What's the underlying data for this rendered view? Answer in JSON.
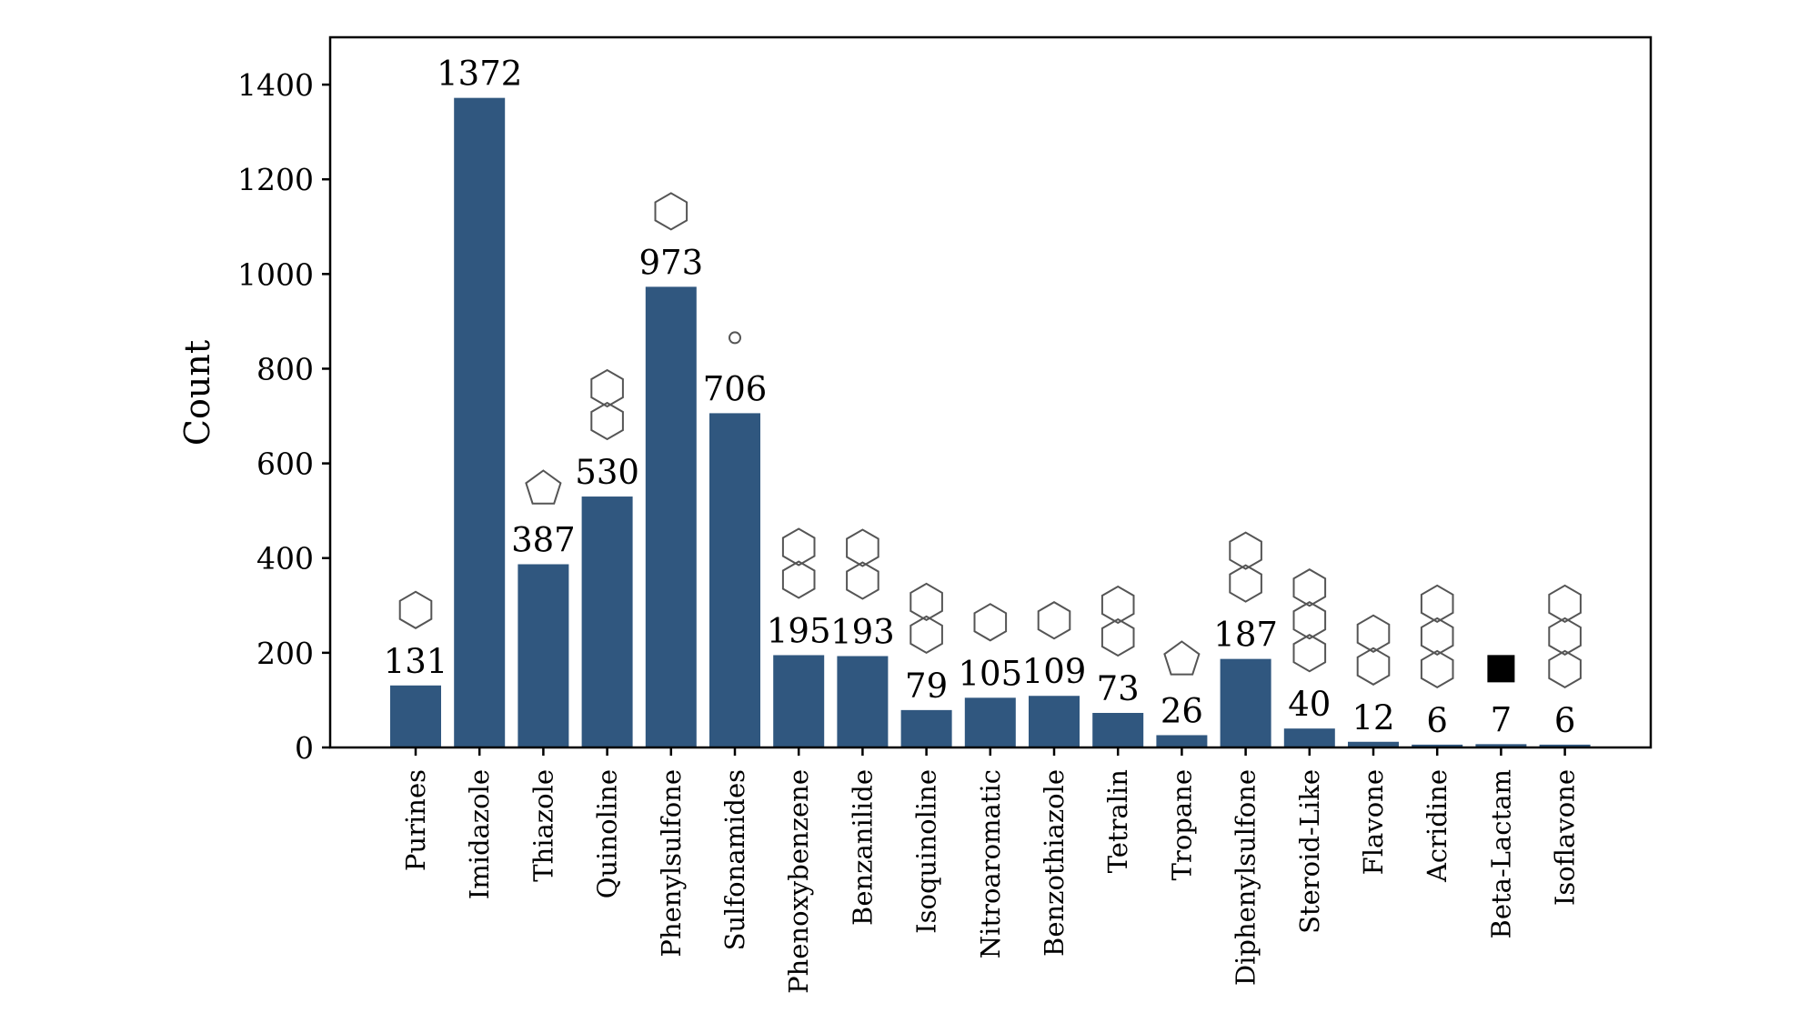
{
  "chart_data": {
    "type": "bar",
    "title": "",
    "xlabel": "",
    "ylabel": "Count",
    "ylim": [
      0,
      1500
    ],
    "yticks": [
      0,
      200,
      400,
      600,
      800,
      1000,
      1200,
      1400
    ],
    "bar_color": "#30577f",
    "categories": [
      "Purines",
      "Imidazole",
      "Thiazole",
      "Quinoline",
      "Phenylsulfone",
      "Sulfonamides",
      "Phenoxybenzene",
      "Benzanilide",
      "Isoquinoline",
      "Nitroaromatic",
      "Benzothiazole",
      "Tetralin",
      "Tropane",
      "Diphenylsulfone",
      "Steroid-Like",
      "Flavone",
      "Acridine",
      "Beta-Lactam",
      "Isoflavone"
    ],
    "values": [
      131,
      1372,
      387,
      530,
      973,
      706,
      195,
      193,
      79,
      105,
      109,
      73,
      26,
      187,
      40,
      12,
      6,
      7,
      6
    ],
    "structure_icons": [
      "purine-structure",
      "imidazole-structure",
      "thiazole-structure",
      "quinoline-structure",
      "phenylsulfone-structure",
      "sulfonamide-structure",
      "phenoxybenzene-structure",
      "benzanilide-structure",
      "isoquinoline-structure",
      "nitroaromatic-structure",
      "benzothiazole-structure",
      "tetralin-structure",
      "tropane-structure",
      "diphenylsulfone-structure",
      "steroid-structure",
      "flavone-structure",
      "acridine-structure",
      "beta-lactam-structure",
      "isoflavone-structure"
    ]
  }
}
